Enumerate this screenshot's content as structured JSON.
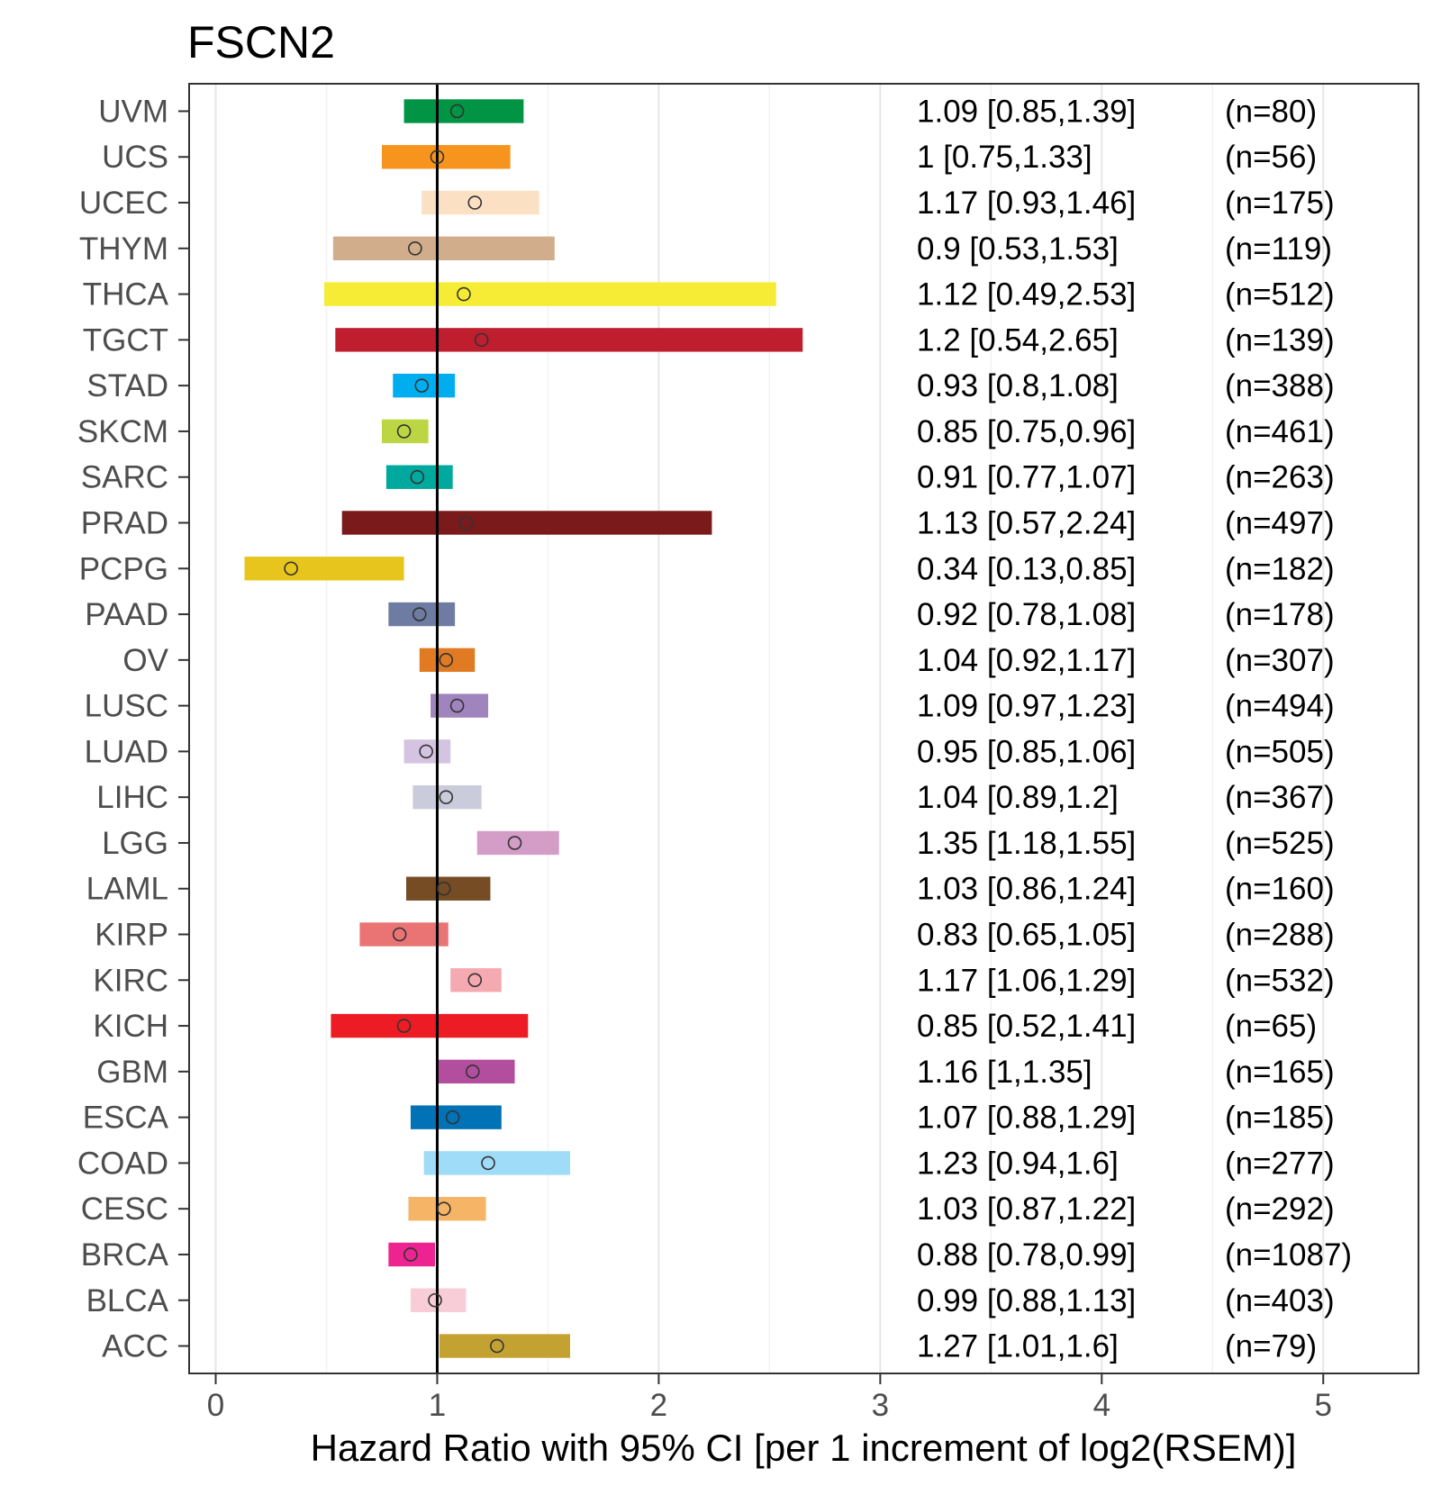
{
  "chart_data": {
    "type": "forest",
    "title": "FSCN2",
    "xlabel": "Hazard Ratio with 95% CI [per 1 increment of log2(RSEM)]",
    "ylabel": "",
    "xlim": [
      -0.12,
      5.43
    ],
    "x_ticks": [
      0,
      1,
      2,
      3,
      4,
      5
    ],
    "x_tick_labels": [
      "0",
      "1",
      "2",
      "3",
      "4",
      "5"
    ],
    "reference_line": 1,
    "grid": true,
    "rows": [
      {
        "label": "UVM",
        "hr": 1.09,
        "lo": 0.85,
        "hi": 1.39,
        "ci_text": "1.09 [0.85,1.39]",
        "n_text": "(n=80)",
        "color": "#009444"
      },
      {
        "label": "UCS",
        "hr": 1.0,
        "lo": 0.75,
        "hi": 1.33,
        "ci_text": "1 [0.75,1.33]",
        "n_text": "(n=56)",
        "color": "#F7941D"
      },
      {
        "label": "UCEC",
        "hr": 1.17,
        "lo": 0.93,
        "hi": 1.46,
        "ci_text": "1.17 [0.93,1.46]",
        "n_text": "(n=175)",
        "color": "#FBE0C3"
      },
      {
        "label": "THYM",
        "hr": 0.9,
        "lo": 0.53,
        "hi": 1.53,
        "ci_text": "0.9 [0.53,1.53]",
        "n_text": "(n=119)",
        "color": "#D1AD8C"
      },
      {
        "label": "THCA",
        "hr": 1.12,
        "lo": 0.49,
        "hi": 2.53,
        "ci_text": "1.12 [0.49,2.53]",
        "n_text": "(n=512)",
        "color": "#F6EC36"
      },
      {
        "label": "TGCT",
        "hr": 1.2,
        "lo": 0.54,
        "hi": 2.65,
        "ci_text": "1.2 [0.54,2.65]",
        "n_text": "(n=139)",
        "color": "#BE1E2D"
      },
      {
        "label": "STAD",
        "hr": 0.93,
        "lo": 0.8,
        "hi": 1.08,
        "ci_text": "0.93 [0.8,1.08]",
        "n_text": "(n=388)",
        "color": "#00AEEF"
      },
      {
        "label": "SKCM",
        "hr": 0.85,
        "lo": 0.75,
        "hi": 0.96,
        "ci_text": "0.85 [0.75,0.96]",
        "n_text": "(n=461)",
        "color": "#BBD642"
      },
      {
        "label": "SARC",
        "hr": 0.91,
        "lo": 0.77,
        "hi": 1.07,
        "ci_text": "0.91 [0.77,1.07]",
        "n_text": "(n=263)",
        "color": "#00A99D"
      },
      {
        "label": "PRAD",
        "hr": 1.13,
        "lo": 0.57,
        "hi": 2.24,
        "ci_text": "1.13 [0.57,2.24]",
        "n_text": "(n=497)",
        "color": "#7B1A1A"
      },
      {
        "label": "PCPG",
        "hr": 0.34,
        "lo": 0.13,
        "hi": 0.85,
        "ci_text": "0.34 [0.13,0.85]",
        "n_text": "(n=182)",
        "color": "#E8C51D"
      },
      {
        "label": "PAAD",
        "hr": 0.92,
        "lo": 0.78,
        "hi": 1.08,
        "ci_text": "0.92 [0.78,1.08]",
        "n_text": "(n=178)",
        "color": "#6E7BA2"
      },
      {
        "label": "OV",
        "hr": 1.04,
        "lo": 0.92,
        "hi": 1.17,
        "ci_text": "1.04 [0.92,1.17]",
        "n_text": "(n=307)",
        "color": "#E07B24"
      },
      {
        "label": "LUSC",
        "hr": 1.09,
        "lo": 0.97,
        "hi": 1.23,
        "ci_text": "1.09 [0.97,1.23]",
        "n_text": "(n=494)",
        "color": "#A084BD"
      },
      {
        "label": "LUAD",
        "hr": 0.95,
        "lo": 0.85,
        "hi": 1.06,
        "ci_text": "0.95 [0.85,1.06]",
        "n_text": "(n=505)",
        "color": "#D5C4E1"
      },
      {
        "label": "LIHC",
        "hr": 1.04,
        "lo": 0.89,
        "hi": 1.2,
        "ci_text": "1.04 [0.89,1.2]",
        "n_text": "(n=367)",
        "color": "#CACCDB"
      },
      {
        "label": "LGG",
        "hr": 1.35,
        "lo": 1.18,
        "hi": 1.55,
        "ci_text": "1.35 [1.18,1.55]",
        "n_text": "(n=525)",
        "color": "#D49DC8"
      },
      {
        "label": "LAML",
        "hr": 1.03,
        "lo": 0.86,
        "hi": 1.24,
        "ci_text": "1.03 [0.86,1.24]",
        "n_text": "(n=160)",
        "color": "#754C24"
      },
      {
        "label": "KIRP",
        "hr": 0.83,
        "lo": 0.65,
        "hi": 1.05,
        "ci_text": "0.83 [0.65,1.05]",
        "n_text": "(n=288)",
        "color": "#EA7373"
      },
      {
        "label": "KIRC",
        "hr": 1.17,
        "lo": 1.06,
        "hi": 1.29,
        "ci_text": "1.17 [1.06,1.29]",
        "n_text": "(n=532)",
        "color": "#F4AAB0"
      },
      {
        "label": "KICH",
        "hr": 0.85,
        "lo": 0.52,
        "hi": 1.41,
        "ci_text": "0.85 [0.52,1.41]",
        "n_text": "(n=65)",
        "color": "#ED1C24"
      },
      {
        "label": "GBM",
        "hr": 1.16,
        "lo": 1.0,
        "hi": 1.35,
        "ci_text": "1.16 [1,1.35]",
        "n_text": "(n=165)",
        "color": "#B34E9E"
      },
      {
        "label": "ESCA",
        "hr": 1.07,
        "lo": 0.88,
        "hi": 1.29,
        "ci_text": "1.07 [0.88,1.29]",
        "n_text": "(n=185)",
        "color": "#0072B5"
      },
      {
        "label": "COAD",
        "hr": 1.23,
        "lo": 0.94,
        "hi": 1.6,
        "ci_text": "1.23 [0.94,1.6]",
        "n_text": "(n=277)",
        "color": "#9EDCF8"
      },
      {
        "label": "CESC",
        "hr": 1.03,
        "lo": 0.87,
        "hi": 1.22,
        "ci_text": "1.03 [0.87,1.22]",
        "n_text": "(n=292)",
        "color": "#F5B466"
      },
      {
        "label": "BRCA",
        "hr": 0.88,
        "lo": 0.78,
        "hi": 0.99,
        "ci_text": "0.88 [0.78,0.99]",
        "n_text": "(n=1087)",
        "color": "#EC2390"
      },
      {
        "label": "BLCA",
        "hr": 0.99,
        "lo": 0.88,
        "hi": 1.13,
        "ci_text": "0.99 [0.88,1.13]",
        "n_text": "(n=403)",
        "color": "#F8CDD7"
      },
      {
        "label": "ACC",
        "hr": 1.27,
        "lo": 1.01,
        "hi": 1.6,
        "ci_text": "1.27 [1.01,1.6]",
        "n_text": "(n=79)",
        "color": "#C3A232"
      }
    ]
  }
}
